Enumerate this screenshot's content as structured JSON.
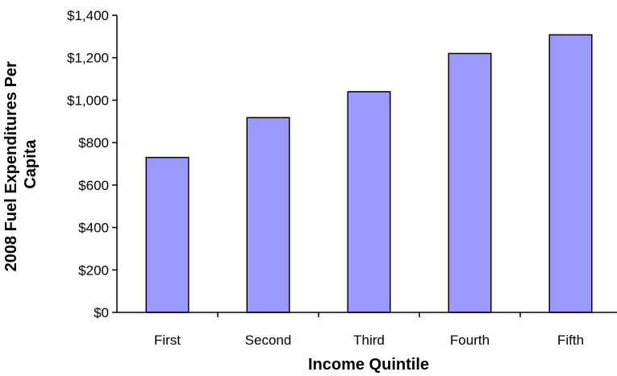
{
  "chart_data": {
    "type": "bar",
    "categories": [
      "First",
      "Second",
      "Third",
      "Fourth",
      "Fifth"
    ],
    "values": [
      730,
      918,
      1040,
      1220,
      1308
    ],
    "title": "",
    "xlabel": "Income Quintile",
    "ylabel_lines": [
      "2008 Fuel Expenditures Per",
      "Capita"
    ],
    "ylim": [
      0,
      1400
    ],
    "yticks": [
      0,
      200,
      400,
      600,
      800,
      1000,
      1200,
      1400
    ],
    "ytick_labels": [
      "$0",
      "$200",
      "$400",
      "$600",
      "$800",
      "$1,000",
      "$1,200",
      "$1,400"
    ],
    "grid": false,
    "legend": "none",
    "bar_color": "#9999ff",
    "bar_edge_color": "#000000"
  }
}
